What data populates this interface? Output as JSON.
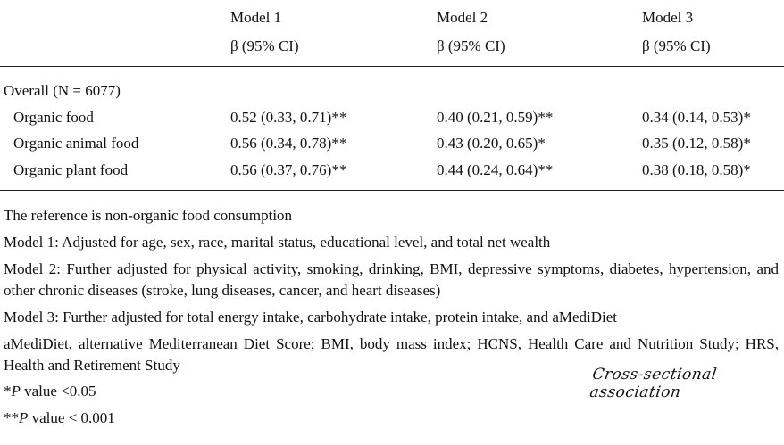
{
  "table": {
    "columns": [
      {
        "model": "Model 1",
        "stat": "β (95% CI)"
      },
      {
        "model": "Model 2",
        "stat": "β (95% CI)"
      },
      {
        "model": "Model 3",
        "stat": "β (95% CI)"
      }
    ],
    "section": "Overall (N = 6077)",
    "rows": [
      [
        "Organic food",
        "0.52 (0.33, 0.71)**",
        "0.40 (0.21, 0.59)**",
        "0.34 (0.14, 0.53)*"
      ],
      [
        "Organic animal food",
        "0.56 (0.34, 0.78)**",
        "0.43 (0.20, 0.65)*",
        "0.35 (0.12, 0.58)*"
      ],
      [
        "Organic plant food",
        "0.56 (0.37, 0.76)**",
        "0.44 (0.24, 0.64)**",
        "0.38 (0.18, 0.58)*"
      ]
    ]
  },
  "notes": [
    "The reference is non-organic food consumption",
    "Model 1: Adjusted for age, sex, race, marital status, educational level, and total net wealth",
    "Model 2: Further adjusted for physical activity, smoking, drinking, BMI, depressive symptoms, diabetes, hypertension, and other chronic diseases (stroke, lung diseases, cancer, and heart diseases)",
    "Model 3: Further adjusted for total energy intake, carbohydrate intake, protein intake, and aMediDiet",
    "aMediDiet, alternative Mediterranean Diet Score; BMI, body mass index; HCNS, Health Care and Nutrition Study; HRS, Health and Retirement Study"
  ],
  "significance": [
    {
      "mark": "*",
      "symbol": "P",
      "text": "value <0.05"
    },
    {
      "mark": "**",
      "symbol": "P",
      "text": "value < 0.001"
    }
  ],
  "annotation": "Cross-sectional association"
}
